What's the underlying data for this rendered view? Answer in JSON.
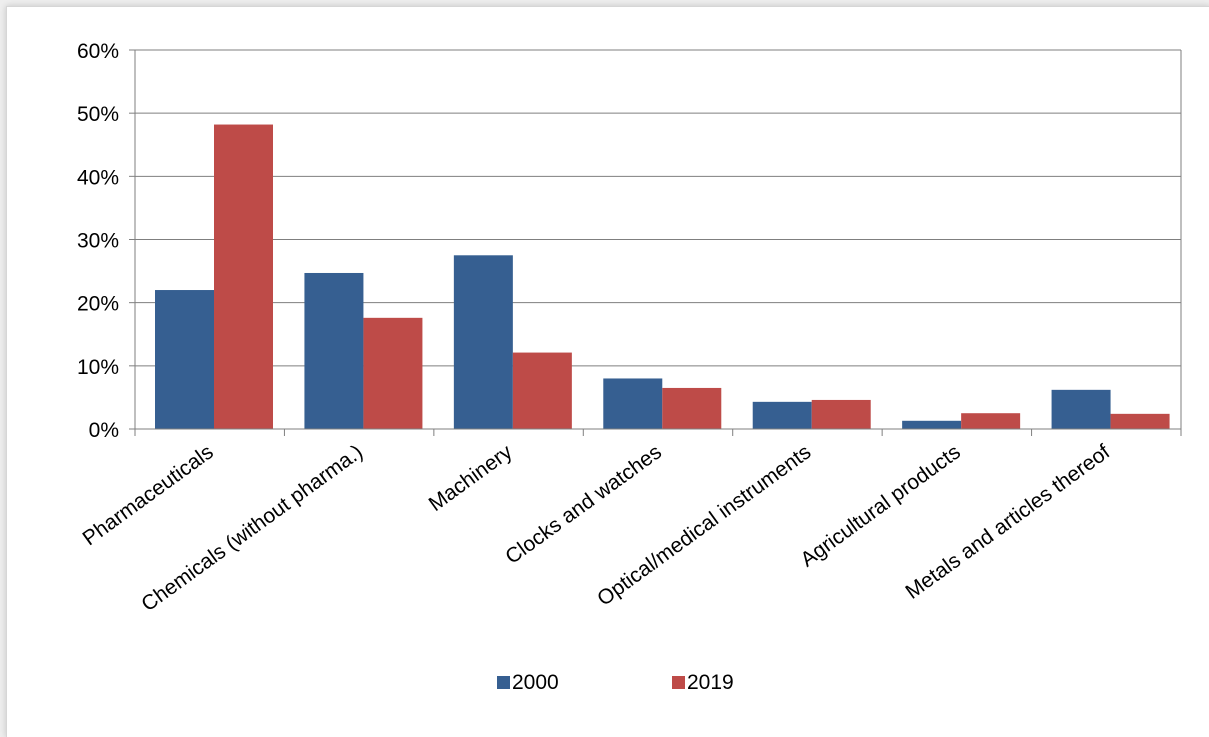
{
  "chart_data": {
    "type": "bar",
    "categories": [
      "Pharmaceuticals",
      "Chemicals (without pharma.)",
      "Machinery",
      "Clocks and watches",
      "Optical/medical instruments",
      "Agricultural products",
      "Metals and articles thereof"
    ],
    "series": [
      {
        "name": "2000",
        "color": "#365F91",
        "values": [
          22.0,
          24.7,
          27.5,
          8.0,
          4.3,
          1.3,
          6.2
        ]
      },
      {
        "name": "2019",
        "color": "#BE4B48",
        "values": [
          48.2,
          17.6,
          12.1,
          6.5,
          4.6,
          2.5,
          2.4
        ]
      }
    ],
    "ylim": [
      0,
      60
    ],
    "y_ticks": [
      0,
      10,
      20,
      30,
      40,
      50,
      60
    ],
    "y_tick_format": "percent",
    "xlabel": "",
    "ylabel": "",
    "title": "",
    "grid": true,
    "legend_position": "bottom"
  }
}
